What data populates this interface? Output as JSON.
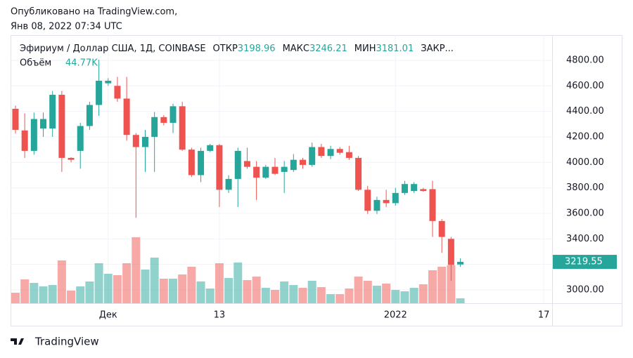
{
  "header": {
    "published": "Опубликовано на TradingView.com,",
    "timestamp": "Янв 08, 2022 07:34 UTC"
  },
  "footer": {
    "brand": "TradingView"
  },
  "chart_data": {
    "type": "candlestick",
    "title": "Эфириум / Доллар США, 1Д, COINBASE",
    "ohlc_names": {
      "open": "ОТКР",
      "high": "МАКС",
      "low": "МИН",
      "close": "ЗАКР..."
    },
    "up_color": "#26a69a",
    "down_color": "#ef5350",
    "grid": true,
    "x": [
      0,
      1,
      2,
      3,
      4,
      5,
      6,
      7,
      8,
      9,
      10,
      11,
      12,
      13,
      14,
      15,
      16,
      17,
      18,
      19,
      20,
      21,
      22,
      23,
      24,
      25,
      26,
      27,
      28,
      29,
      30,
      31,
      32,
      33,
      34,
      35,
      36,
      37,
      38,
      39,
      40,
      41,
      42,
      43,
      44,
      45,
      46,
      47,
      48
    ],
    "open": [
      4420,
      4250,
      4090,
      4265,
      4265,
      4530,
      4035,
      4090,
      4285,
      4450,
      4620,
      4600,
      4500,
      4215,
      4120,
      4200,
      4355,
      4310,
      4440,
      4100,
      3900,
      4090,
      4135,
      3785,
      3870,
      4010,
      3965,
      3880,
      3965,
      3925,
      3940,
      4020,
      3980,
      4120,
      4050,
      4105,
      4080,
      4035,
      3785,
      3620,
      3705,
      3680,
      3760,
      3775,
      3790,
      3790,
      3540,
      3400,
      3198.96
    ],
    "high": [
      4445,
      4385,
      4390,
      4390,
      4560,
      4560,
      4040,
      4310,
      4475,
      4805,
      4660,
      4670,
      4670,
      4230,
      4255,
      4395,
      4370,
      4460,
      4475,
      4115,
      4115,
      4145,
      4145,
      3900,
      4115,
      4115,
      4010,
      3980,
      4035,
      4010,
      4065,
      4035,
      4155,
      4145,
      4130,
      4120,
      4130,
      4050,
      3815,
      3730,
      3785,
      3800,
      3855,
      3845,
      3800,
      3855,
      3555,
      3415,
      3246.21
    ],
    "low": [
      4225,
      4035,
      4060,
      4200,
      4200,
      3925,
      4000,
      3950,
      4255,
      4365,
      4600,
      4475,
      4170,
      3565,
      3925,
      3925,
      4290,
      4230,
      4090,
      3885,
      3845,
      4080,
      3650,
      3760,
      3650,
      3950,
      3705,
      3870,
      3900,
      3760,
      3925,
      3950,
      3965,
      4035,
      4025,
      4060,
      4020,
      3775,
      3595,
      3595,
      3650,
      3660,
      3745,
      3760,
      3770,
      3415,
      3290,
      3070,
      3181.01
    ],
    "close": [
      4255,
      4090,
      4340,
      4340,
      4530,
      4035,
      4020,
      4285,
      4450,
      4640,
      4640,
      4500,
      4215,
      4120,
      4200,
      4355,
      4310,
      4440,
      4100,
      3900,
      4090,
      4135,
      3785,
      3870,
      4090,
      3965,
      3880,
      3965,
      3910,
      3965,
      4020,
      3980,
      4120,
      4050,
      4105,
      4075,
      4035,
      3785,
      3620,
      3705,
      3680,
      3760,
      3830,
      3830,
      3775,
      3540,
      3415,
      3195,
      3219.55
    ],
    "ylim": [
      2895,
      4998
    ],
    "yticks": [
      {
        "value": 3000,
        "label": "3000.00"
      },
      {
        "value": 3200,
        "label": "3200.00"
      },
      {
        "value": 3400,
        "label": "3400.00"
      },
      {
        "value": 3600,
        "label": "3600.00"
      },
      {
        "value": 3800,
        "label": "3800.00"
      },
      {
        "value": 4000,
        "label": "4000.00"
      },
      {
        "value": 4200,
        "label": "4200.00"
      },
      {
        "value": 4400,
        "label": "4400.00"
      },
      {
        "value": 4600,
        "label": "4600.00"
      },
      {
        "value": 4800,
        "label": "4800.00"
      }
    ],
    "xlim": [
      -0.53,
      57.9
    ],
    "xticks": [
      {
        "value": 10,
        "label": "Дек"
      },
      {
        "value": 22,
        "label": "13"
      },
      {
        "value": 41,
        "label": "2022"
      },
      {
        "value": 57,
        "label": "17"
      }
    ],
    "volume": {
      "name": "Объём",
      "ylim": [
        0,
        2444800
      ],
      "values": [
        96000,
        217600,
        185600,
        153600,
        166400,
        390400,
        115200,
        153600,
        198400,
        364800,
        268800,
        256000,
        364800,
        601600,
        307200,
        416000,
        224000,
        224000,
        262400,
        332800,
        198400,
        134400,
        364800,
        230400,
        371200,
        211200,
        243200,
        140800,
        121600,
        198400,
        166400,
        140800,
        204800,
        147200,
        83200,
        83200,
        134400,
        243200,
        204800,
        160000,
        179200,
        121600,
        108800,
        140800,
        172800,
        300800,
        332800,
        345600,
        44770
      ],
      "value_labels": [
        null,
        null,
        null,
        null,
        null,
        null,
        null,
        null,
        null,
        null,
        null,
        null,
        null,
        null,
        null,
        null,
        null,
        null,
        null,
        null,
        null,
        null,
        null,
        null,
        null,
        null,
        null,
        null,
        null,
        null,
        null,
        null,
        null,
        null,
        null,
        null,
        null,
        null,
        null,
        null,
        null,
        null,
        null,
        null,
        null,
        null,
        null,
        null,
        "44.77K"
      ]
    }
  }
}
